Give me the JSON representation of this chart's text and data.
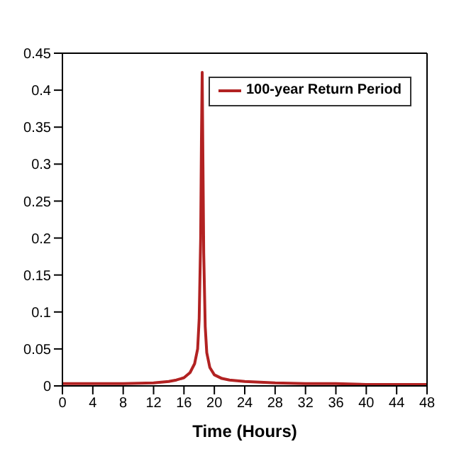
{
  "chart_data": {
    "type": "line",
    "xlabel": "Time (Hours)",
    "x": [
      0,
      4,
      8,
      12,
      14,
      15,
      16,
      16.8,
      17.4,
      17.8,
      18.0,
      18.2,
      18.3,
      18.4,
      18.5,
      18.6,
      18.8,
      19.0,
      19.4,
      20,
      21,
      22,
      24,
      28,
      32,
      36,
      40,
      44,
      48
    ],
    "series": [
      {
        "name": "100-year Return Period",
        "color": "#b22222",
        "values": [
          0.003,
          0.003,
          0.003,
          0.004,
          0.006,
          0.008,
          0.011,
          0.018,
          0.03,
          0.05,
          0.09,
          0.2,
          0.33,
          0.424,
          0.3,
          0.18,
          0.08,
          0.045,
          0.025,
          0.015,
          0.01,
          0.008,
          0.006,
          0.004,
          0.003,
          0.003,
          0.002,
          0.002,
          0.002
        ]
      }
    ],
    "xlim": [
      0,
      48
    ],
    "xticks": [
      0,
      4,
      8,
      12,
      16,
      20,
      24,
      28,
      32,
      36,
      40,
      44,
      48
    ],
    "ylim": [
      0,
      0.45
    ],
    "yticks": [
      0,
      0.05,
      0.1,
      0.15,
      0.2,
      0.25,
      0.3,
      0.35,
      0.4,
      0.45
    ],
    "grid": false,
    "legend": "top right",
    "marker": "none",
    "line_style": "solid"
  }
}
